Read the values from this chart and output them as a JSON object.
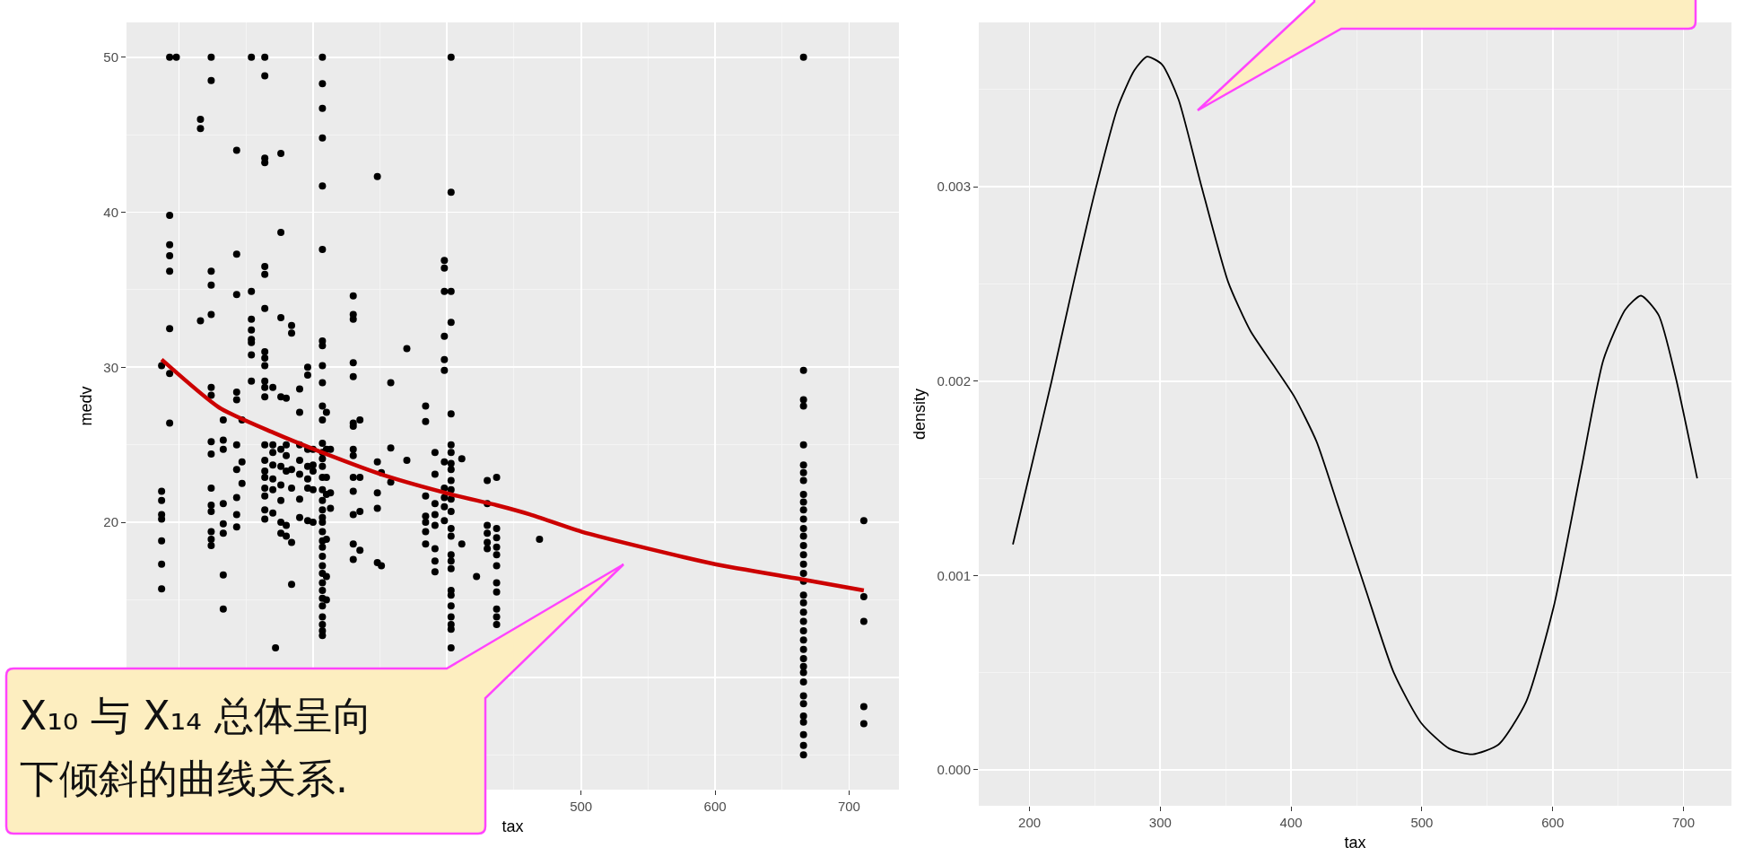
{
  "chart_data": [
    {
      "type": "scatter",
      "xlabel": "tax",
      "ylabel": "medv",
      "xlim": [
        160.8,
        737.2
      ],
      "ylim": [
        2.75,
        52.25
      ],
      "xticks": [
        {
          "value": 200,
          "label": null
        },
        {
          "value": 300,
          "label": null
        },
        {
          "value": 400,
          "label": null
        },
        500,
        600,
        700
      ],
      "yticks": [
        {
          "value": 10,
          "label": null
        },
        20,
        30,
        40,
        50
      ],
      "grid": true,
      "marker": "circle",
      "annotations": [
        "X₁₀ 与 X₁₄ 总体呈向下倾斜的曲线关系."
      ],
      "series": [
        {
          "color": "#000000",
          "x": [
            187,
            187,
            187,
            187,
            187,
            187,
            187,
            187,
            193,
            193,
            193,
            193,
            193,
            193,
            193,
            193,
            198,
            216,
            216,
            216,
            224,
            224,
            224,
            224,
            224,
            224,
            224,
            224,
            224,
            224,
            224,
            224,
            224,
            224,
            224,
            233,
            233,
            233,
            233,
            233,
            233,
            233,
            233,
            243,
            243,
            243,
            243,
            243,
            243,
            243,
            243,
            243,
            243,
            247,
            247,
            247,
            254,
            254,
            254,
            254,
            254,
            254,
            254,
            254,
            264,
            264,
            264,
            264,
            264,
            264,
            264,
            264,
            264,
            264,
            264,
            264,
            264,
            264,
            264,
            264,
            264,
            264,
            264,
            264,
            264,
            270,
            270,
            270,
            270,
            270,
            270,
            270,
            272,
            276,
            276,
            276,
            276,
            276,
            276,
            276,
            276,
            276,
            276,
            280,
            280,
            280,
            280,
            280,
            280,
            284,
            284,
            284,
            284,
            284,
            284,
            290,
            290,
            290,
            290,
            290,
            290,
            290,
            296,
            296,
            296,
            296,
            296,
            296,
            296,
            300,
            300,
            300,
            300,
            300,
            307,
            307,
            307,
            307,
            307,
            307,
            307,
            307,
            307,
            307,
            307,
            307,
            307,
            307,
            307,
            307,
            307,
            307,
            307,
            307,
            307,
            307,
            307,
            307,
            307,
            307,
            307,
            307,
            307,
            307,
            307,
            307,
            307,
            307,
            307,
            307,
            310,
            310,
            310,
            310,
            310,
            310,
            310,
            313,
            313,
            313,
            330,
            330,
            330,
            330,
            330,
            330,
            330,
            330,
            330,
            330,
            330,
            330,
            330,
            330,
            335,
            335,
            335,
            335,
            348,
            348,
            348,
            348,
            348,
            351,
            351,
            358,
            358,
            358,
            370,
            370,
            384,
            384,
            384,
            384,
            384,
            384,
            384,
            391,
            391,
            391,
            391,
            391,
            391,
            391,
            391,
            398,
            398,
            398,
            398,
            398,
            398,
            398,
            398,
            398,
            398,
            398,
            403,
            403,
            403,
            403,
            403,
            403,
            403,
            403,
            403,
            403,
            403,
            403,
            403,
            403,
            403,
            403,
            403,
            403,
            403,
            403,
            403,
            403,
            403,
            403,
            403,
            411,
            411,
            422,
            430,
            430,
            430,
            430,
            430,
            430,
            437,
            437,
            437,
            437,
            437,
            437,
            437,
            437,
            437,
            437,
            437,
            469,
            666,
            666,
            666,
            666,
            666,
            666,
            666,
            666,
            666,
            666,
            666,
            666,
            666,
            666,
            666,
            666,
            666,
            666,
            666,
            666,
            666,
            666,
            666,
            666,
            666,
            666,
            666,
            666,
            666,
            666,
            666,
            666,
            666,
            666,
            666,
            666,
            666,
            711,
            711,
            711,
            711,
            711
          ],
          "values": [
            30.1,
            22,
            21.4,
            20.5,
            20.2,
            18.8,
            17.3,
            15.7,
            50,
            39.8,
            37.9,
            37.2,
            36.2,
            32.5,
            29.6,
            26.4,
            50,
            46,
            45.4,
            33,
            50,
            48.5,
            36.2,
            35.3,
            33.4,
            28.7,
            28.2,
            25.2,
            24.4,
            22.2,
            21.1,
            20.7,
            19.4,
            18.9,
            18.5,
            26.6,
            25.3,
            24.7,
            21.2,
            19.9,
            19.3,
            16.6,
            14.4,
            44,
            37.3,
            34.7,
            28.4,
            27.9,
            25,
            23.4,
            21.6,
            20.5,
            19.7,
            26.6,
            23.9,
            22.5,
            50,
            34.9,
            33.1,
            32.4,
            31.8,
            31.6,
            30.8,
            29.1,
            50,
            48.8,
            43.5,
            43.2,
            36.5,
            36,
            33.8,
            31,
            30.6,
            30.1,
            29.1,
            28.7,
            28.1,
            25,
            24,
            23.3,
            22.9,
            22.2,
            21.7,
            20.8,
            20.2,
            28.7,
            25,
            24.5,
            23.7,
            22.8,
            22.1,
            20.6,
            11.9,
            43.8,
            38.7,
            33.2,
            28.1,
            24.7,
            23.6,
            22.4,
            21.4,
            20,
            19.3,
            28,
            25,
            24.3,
            23.3,
            19.8,
            19.1,
            32.7,
            32.2,
            23.4,
            22.2,
            18.7,
            16,
            28.6,
            27.1,
            25,
            24,
            23.1,
            21.5,
            20.3,
            30,
            29.5,
            24.7,
            23.6,
            22.8,
            22.2,
            20.1,
            24.7,
            23.7,
            23.3,
            22.1,
            20,
            50,
            48.3,
            46.7,
            44.8,
            41.7,
            37.6,
            31.7,
            31.4,
            30.1,
            29,
            27.5,
            26.6,
            25.1,
            24.5,
            24.1,
            23.6,
            22.9,
            22.1,
            21.4,
            20.8,
            20.3,
            20,
            19.4,
            18.8,
            18.4,
            17.8,
            17.2,
            16.7,
            16.1,
            15.6,
            15.1,
            14.6,
            13.9,
            13.4,
            13,
            12.7,
            27.1,
            24.7,
            22.9,
            21.8,
            18.9,
            16.5,
            15,
            24.7,
            21.9,
            20.9,
            34.6,
            33.4,
            33.1,
            30.3,
            29.4,
            26.4,
            26.2,
            24.7,
            24.3,
            22.9,
            22,
            20.5,
            18.6,
            17.6,
            26.6,
            22.9,
            20.7,
            18.2,
            42.3,
            23.9,
            21.9,
            20.9,
            17.4,
            23.2,
            17.2,
            29,
            24.8,
            22.6,
            31.2,
            24,
            27.5,
            26.5,
            21.7,
            20.4,
            20,
            19.4,
            18.6,
            24.5,
            23.1,
            21.2,
            20.5,
            19.8,
            18.3,
            17.5,
            16.8,
            36.9,
            36.4,
            34.9,
            32,
            30.5,
            29.8,
            23.9,
            22.2,
            21.6,
            21,
            20.1,
            50,
            41.3,
            34.9,
            32.9,
            27,
            25,
            24.5,
            23.8,
            23.4,
            22.7,
            22.1,
            21.5,
            20.7,
            19.6,
            19.1,
            17.9,
            17.5,
            17,
            15.6,
            15.3,
            14.6,
            13.9,
            13.4,
            13.1,
            11.9,
            24.1,
            18.6,
            16.5,
            22.7,
            21.2,
            19.8,
            19.3,
            18.7,
            18.3,
            22.9,
            19.6,
            19,
            18.4,
            17.9,
            17.2,
            16.1,
            15.5,
            14.4,
            13.9,
            13.4,
            18.9,
            50,
            29.8,
            27.9,
            27.5,
            25,
            23.7,
            23.2,
            22.7,
            21.8,
            21.3,
            20.8,
            20.2,
            19.6,
            19.1,
            18.5,
            17.9,
            17.3,
            16.7,
            16.2,
            15.3,
            14.8,
            14.2,
            13.6,
            13,
            12.4,
            11.8,
            11.2,
            10.7,
            10.3,
            9.7,
            8.8,
            8.3,
            7.5,
            7.1,
            6.3,
            5.6,
            5,
            20.1,
            15.2,
            13.6,
            8.1,
            7
          ]
        },
        {
          "type": "line",
          "marker": "none",
          "color": "#cc0000",
          "x": [
            187,
            230,
            270,
            307,
            354,
            403,
            437,
            462,
            500,
            550,
            600,
            666,
            711
          ],
          "values": [
            30.5,
            27.4,
            25.8,
            24.5,
            23,
            21.8,
            21.1,
            20.5,
            19.4,
            18.3,
            17.3,
            16.3,
            15.6
          ]
        }
      ]
    },
    {
      "type": "line",
      "xlabel": "tax",
      "ylabel": "density",
      "xlim": [
        161.2,
        736.7
      ],
      "ylim": [
        -0.000185,
        0.003846
      ],
      "xticks": [
        200,
        300,
        400,
        500,
        600,
        700
      ],
      "yticks": [
        {
          "value": 0,
          "label": "0.000"
        },
        0.001,
        0.002,
        0.003
      ],
      "grid": true,
      "series": [
        {
          "color": "#000000",
          "x": [
            187.3,
            200,
            216.9,
            233.8,
            250.6,
            267.5,
            280.2,
            289.9,
            301.3,
            313.9,
            330.8,
            351.9,
            368.8,
            385.7,
            402.5,
            419.4,
            436.3,
            457.4,
            478.5,
            499.6,
            520.7,
            538.8,
            558.6,
            579.7,
            600.8,
            621.9,
            638.8,
            655.7,
            667.5,
            681,
            693.7,
            710.5
          ],
          "values": [
            0.00116,
            0.00152,
            0.002,
            0.00251,
            0.00299,
            0.00341,
            0.0036,
            0.00367,
            0.00363,
            0.00345,
            0.00302,
            0.00251,
            0.00226,
            0.00209,
            0.00192,
            0.00169,
            0.00135,
            0.00092,
            0.0005,
            0.00024,
            0.00011,
            8e-05,
            0.00013,
            0.00035,
            0.00084,
            0.00155,
            0.00211,
            0.00237,
            0.00244,
            0.00234,
            0.00203,
            0.0015
          ]
        }
      ]
    }
  ]
}
